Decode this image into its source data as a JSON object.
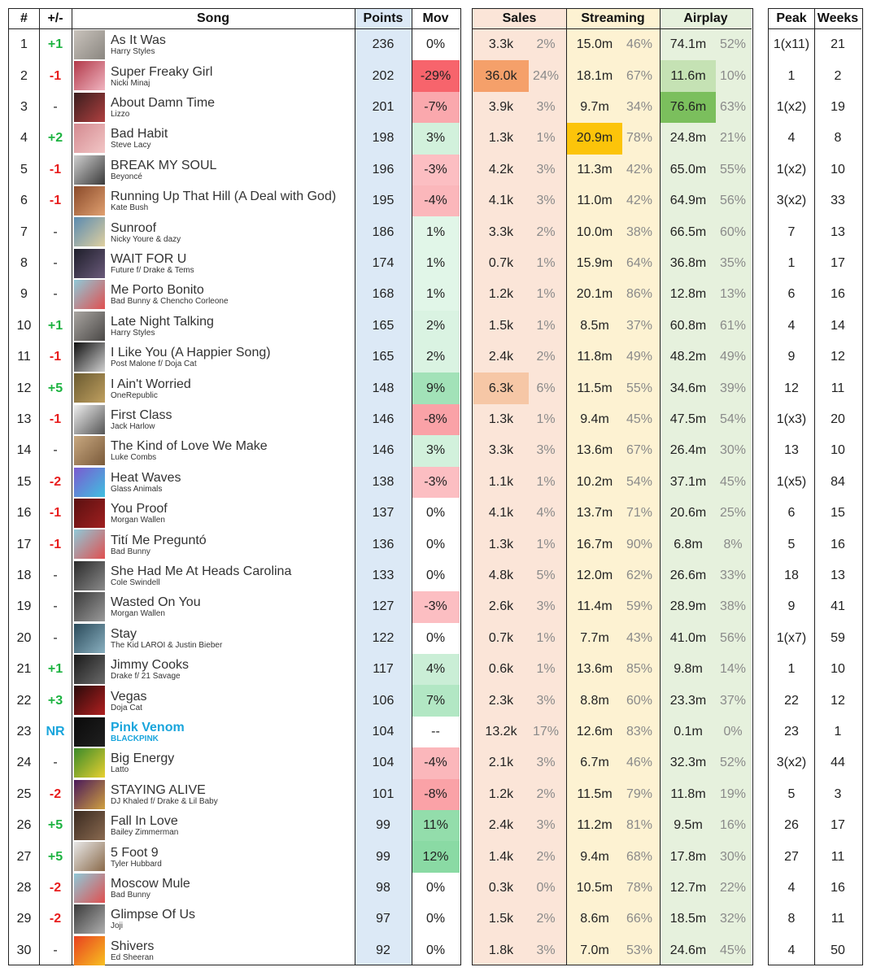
{
  "headers": {
    "rank": "#",
    "change": "+/-",
    "song": "Song",
    "points": "Points",
    "mov": "Mov",
    "sales": "Sales",
    "streaming": "Streaming",
    "airplay": "Airplay",
    "peak": "Peak",
    "weeks": "Weeks"
  },
  "colors": {
    "change_up": "#1db341",
    "change_down": "#e81c1c",
    "new_entry": "#19a5dc",
    "points_col": "#dce9f6",
    "sales_col": "#fbe5d8",
    "streaming_col": "#fdf2d2",
    "airplay_col": "#e6f1dd",
    "sales_highlight": "#f5a06a",
    "streaming_highlight": "#fcc40a",
    "airplay_highlight": "#7bbf5d"
  },
  "rows": [
    {
      "rank": "1",
      "change": "+1",
      "title": "As It Was",
      "artist": "Harry Styles",
      "points": "236",
      "mov": "0%",
      "mov_value": 0,
      "sales": "3.3k",
      "sales_pct": "2%",
      "streaming": "15.0m",
      "streaming_pct": "46%",
      "airplay": "74.1m",
      "airplay_pct": "52%",
      "peak": "1(x11)",
      "weeks": "21",
      "cover_colors": [
        "#c9c3bc",
        "#8a8680"
      ]
    },
    {
      "rank": "2",
      "change": "-1",
      "title": "Super Freaky Girl",
      "artist": "Nicki Minaj",
      "points": "202",
      "mov": "-29%",
      "mov_value": -29,
      "sales": "36.0k",
      "sales_pct": "24%",
      "streaming": "18.1m",
      "streaming_pct": "67%",
      "airplay": "11.6m",
      "airplay_pct": "10%",
      "peak": "1",
      "weeks": "2",
      "cover_colors": [
        "#b23a4a",
        "#f0b4c0"
      ],
      "highlight": {
        "sales": "strong",
        "airplay": "light"
      }
    },
    {
      "rank": "3",
      "change": "-",
      "title": "About Damn Time",
      "artist": "Lizzo",
      "points": "201",
      "mov": "-7%",
      "mov_value": -7,
      "sales": "3.9k",
      "sales_pct": "3%",
      "streaming": "9.7m",
      "streaming_pct": "34%",
      "airplay": "76.6m",
      "airplay_pct": "63%",
      "peak": "1(x2)",
      "weeks": "19",
      "cover_colors": [
        "#3a1e1e",
        "#b04040"
      ],
      "highlight": {
        "airplay": "strong"
      }
    },
    {
      "rank": "4",
      "change": "+2",
      "title": "Bad Habit",
      "artist": "Steve Lacy",
      "points": "198",
      "mov": "3%",
      "mov_value": 3,
      "sales": "1.3k",
      "sales_pct": "1%",
      "streaming": "20.9m",
      "streaming_pct": "78%",
      "airplay": "24.8m",
      "airplay_pct": "21%",
      "peak": "4",
      "weeks": "8",
      "cover_colors": [
        "#d48a90",
        "#f2c6c6"
      ],
      "highlight": {
        "streaming": "strong"
      }
    },
    {
      "rank": "5",
      "change": "-1",
      "title": "BREAK MY SOUL",
      "artist": "Beyoncé",
      "points": "196",
      "mov": "-3%",
      "mov_value": -3,
      "sales": "4.2k",
      "sales_pct": "3%",
      "streaming": "11.3m",
      "streaming_pct": "42%",
      "airplay": "65.0m",
      "airplay_pct": "55%",
      "peak": "1(x2)",
      "weeks": "10",
      "cover_colors": [
        "#cfcfcf",
        "#3a3a3a"
      ]
    },
    {
      "rank": "6",
      "change": "-1",
      "title": "Running Up That Hill (A Deal with God)",
      "artist": "Kate Bush",
      "points": "195",
      "mov": "-4%",
      "mov_value": -4,
      "sales": "4.1k",
      "sales_pct": "3%",
      "streaming": "11.0m",
      "streaming_pct": "42%",
      "airplay": "64.9m",
      "airplay_pct": "56%",
      "peak": "3(x2)",
      "weeks": "33",
      "cover_colors": [
        "#8a4a2a",
        "#e0a070"
      ]
    },
    {
      "rank": "7",
      "change": "-",
      "title": "Sunroof",
      "artist": "Nicky Youre & dazy",
      "points": "186",
      "mov": "1%",
      "mov_value": 1,
      "sales": "3.3k",
      "sales_pct": "2%",
      "streaming": "10.0m",
      "streaming_pct": "38%",
      "airplay": "66.5m",
      "airplay_pct": "60%",
      "peak": "7",
      "weeks": "13",
      "cover_colors": [
        "#5a8ab0",
        "#e0d0a0"
      ]
    },
    {
      "rank": "8",
      "change": "-",
      "title": "WAIT FOR U",
      "artist": "Future f/ Drake & Tems",
      "points": "174",
      "mov": "1%",
      "mov_value": 1,
      "sales": "0.7k",
      "sales_pct": "1%",
      "streaming": "15.9m",
      "streaming_pct": "64%",
      "airplay": "36.8m",
      "airplay_pct": "35%",
      "peak": "1",
      "weeks": "17",
      "cover_colors": [
        "#1e1e2a",
        "#6a5a7a"
      ]
    },
    {
      "rank": "9",
      "change": "-",
      "title": "Me Porto Bonito",
      "artist": "Bad Bunny & Chencho Corleone",
      "points": "168",
      "mov": "1%",
      "mov_value": 1,
      "sales": "1.2k",
      "sales_pct": "1%",
      "streaming": "20.1m",
      "streaming_pct": "86%",
      "airplay": "12.8m",
      "airplay_pct": "13%",
      "peak": "6",
      "weeks": "16",
      "cover_colors": [
        "#8fc9d8",
        "#e05050"
      ]
    },
    {
      "rank": "10",
      "change": "+1",
      "title": "Late Night Talking",
      "artist": "Harry Styles",
      "points": "165",
      "mov": "2%",
      "mov_value": 2,
      "sales": "1.5k",
      "sales_pct": "1%",
      "streaming": "8.5m",
      "streaming_pct": "37%",
      "airplay": "60.8m",
      "airplay_pct": "61%",
      "peak": "4",
      "weeks": "14",
      "cover_colors": [
        "#a8a4a0",
        "#4a4846"
      ]
    },
    {
      "rank": "11",
      "change": "-1",
      "title": "I Like You (A Happier Song)",
      "artist": "Post Malone f/ Doja Cat",
      "points": "165",
      "mov": "2%",
      "mov_value": 2,
      "sales": "2.4k",
      "sales_pct": "2%",
      "streaming": "11.8m",
      "streaming_pct": "49%",
      "airplay": "48.2m",
      "airplay_pct": "49%",
      "peak": "9",
      "weeks": "12",
      "cover_colors": [
        "#101010",
        "#d0d0d0"
      ]
    },
    {
      "rank": "12",
      "change": "+5",
      "title": "I Ain't Worried",
      "artist": "OneRepublic",
      "points": "148",
      "mov": "9%",
      "mov_value": 9,
      "sales": "6.3k",
      "sales_pct": "6%",
      "streaming": "11.5m",
      "streaming_pct": "55%",
      "airplay": "34.6m",
      "airplay_pct": "39%",
      "peak": "12",
      "weeks": "11",
      "cover_colors": [
        "#6a5a30",
        "#c0a060"
      ],
      "highlight": {
        "sales": "light"
      }
    },
    {
      "rank": "13",
      "change": "-1",
      "title": "First Class",
      "artist": "Jack Harlow",
      "points": "146",
      "mov": "-8%",
      "mov_value": -8,
      "sales": "1.3k",
      "sales_pct": "1%",
      "streaming": "9.4m",
      "streaming_pct": "45%",
      "airplay": "47.5m",
      "airplay_pct": "54%",
      "peak": "1(x3)",
      "weeks": "20",
      "cover_colors": [
        "#eeeeee",
        "#555555"
      ]
    },
    {
      "rank": "14",
      "change": "-",
      "title": "The Kind of Love We Make",
      "artist": "Luke Combs",
      "points": "146",
      "mov": "3%",
      "mov_value": 3,
      "sales": "3.3k",
      "sales_pct": "3%",
      "streaming": "13.6m",
      "streaming_pct": "67%",
      "airplay": "26.4m",
      "airplay_pct": "30%",
      "peak": "13",
      "weeks": "10",
      "cover_colors": [
        "#c8a880",
        "#7a5a3a"
      ]
    },
    {
      "rank": "15",
      "change": "-2",
      "title": "Heat Waves",
      "artist": "Glass Animals",
      "points": "138",
      "mov": "-3%",
      "mov_value": -3,
      "sales": "1.1k",
      "sales_pct": "1%",
      "streaming": "10.2m",
      "streaming_pct": "54%",
      "airplay": "37.1m",
      "airplay_pct": "45%",
      "peak": "1(x5)",
      "weeks": "84",
      "cover_colors": [
        "#7a5ad0",
        "#40c0e0"
      ]
    },
    {
      "rank": "16",
      "change": "-1",
      "title": "You Proof",
      "artist": "Morgan Wallen",
      "points": "137",
      "mov": "0%",
      "mov_value": 0,
      "sales": "4.1k",
      "sales_pct": "4%",
      "streaming": "13.7m",
      "streaming_pct": "71%",
      "airplay": "20.6m",
      "airplay_pct": "25%",
      "peak": "6",
      "weeks": "15",
      "cover_colors": [
        "#5a1010",
        "#a02020"
      ]
    },
    {
      "rank": "17",
      "change": "-1",
      "title": "Tití Me Preguntó",
      "artist": "Bad Bunny",
      "points": "136",
      "mov": "0%",
      "mov_value": 0,
      "sales": "1.3k",
      "sales_pct": "1%",
      "streaming": "16.7m",
      "streaming_pct": "90%",
      "airplay": "6.8m",
      "airplay_pct": "8%",
      "peak": "5",
      "weeks": "16",
      "cover_colors": [
        "#8fc9d8",
        "#e05050"
      ]
    },
    {
      "rank": "18",
      "change": "-",
      "title": "She Had Me At Heads Carolina",
      "artist": "Cole Swindell",
      "points": "133",
      "mov": "0%",
      "mov_value": 0,
      "sales": "4.8k",
      "sales_pct": "5%",
      "streaming": "12.0m",
      "streaming_pct": "62%",
      "airplay": "26.6m",
      "airplay_pct": "33%",
      "peak": "18",
      "weeks": "13",
      "cover_colors": [
        "#2a2a2a",
        "#8a8a8a"
      ]
    },
    {
      "rank": "19",
      "change": "-",
      "title": "Wasted On You",
      "artist": "Morgan Wallen",
      "points": "127",
      "mov": "-3%",
      "mov_value": -3,
      "sales": "2.6k",
      "sales_pct": "3%",
      "streaming": "11.4m",
      "streaming_pct": "59%",
      "airplay": "28.9m",
      "airplay_pct": "38%",
      "peak": "9",
      "weeks": "41",
      "cover_colors": [
        "#3a3a3a",
        "#9a9a9a"
      ]
    },
    {
      "rank": "20",
      "change": "-",
      "title": "Stay",
      "artist": "The Kid LAROI & Justin Bieber",
      "points": "122",
      "mov": "0%",
      "mov_value": 0,
      "sales": "0.7k",
      "sales_pct": "1%",
      "streaming": "7.7m",
      "streaming_pct": "43%",
      "airplay": "41.0m",
      "airplay_pct": "56%",
      "peak": "1(x7)",
      "weeks": "59",
      "cover_colors": [
        "#2a4a5a",
        "#8ab0c0"
      ]
    },
    {
      "rank": "21",
      "change": "+1",
      "title": "Jimmy Cooks",
      "artist": "Drake f/ 21 Savage",
      "points": "117",
      "mov": "4%",
      "mov_value": 4,
      "sales": "0.6k",
      "sales_pct": "1%",
      "streaming": "13.6m",
      "streaming_pct": "85%",
      "airplay": "9.8m",
      "airplay_pct": "14%",
      "peak": "1",
      "weeks": "10",
      "cover_colors": [
        "#1a1a1a",
        "#6a6a6a"
      ]
    },
    {
      "rank": "22",
      "change": "+3",
      "title": "Vegas",
      "artist": "Doja Cat",
      "points": "106",
      "mov": "7%",
      "mov_value": 7,
      "sales": "2.3k",
      "sales_pct": "3%",
      "streaming": "8.8m",
      "streaming_pct": "60%",
      "airplay": "23.3m",
      "airplay_pct": "37%",
      "peak": "22",
      "weeks": "12",
      "cover_colors": [
        "#2a0a0a",
        "#b02020"
      ]
    },
    {
      "rank": "23",
      "change": "NR",
      "title": "Pink Venom",
      "artist": "BLACKPINK",
      "points": "104",
      "mov": "--",
      "mov_value": null,
      "sales": "13.2k",
      "sales_pct": "17%",
      "streaming": "12.6m",
      "streaming_pct": "83%",
      "airplay": "0.1m",
      "airplay_pct": "0%",
      "peak": "23",
      "weeks": "1",
      "cover_colors": [
        "#0a0a0a",
        "#202020"
      ],
      "new_entry": true
    },
    {
      "rank": "24",
      "change": "-",
      "title": "Big Energy",
      "artist": "Latto",
      "points": "104",
      "mov": "-4%",
      "mov_value": -4,
      "sales": "2.1k",
      "sales_pct": "3%",
      "streaming": "6.7m",
      "streaming_pct": "46%",
      "airplay": "32.3m",
      "airplay_pct": "52%",
      "peak": "3(x2)",
      "weeks": "44",
      "cover_colors": [
        "#3a8a2a",
        "#e8d030"
      ]
    },
    {
      "rank": "25",
      "change": "-2",
      "title": "STAYING ALIVE",
      "artist": "DJ Khaled f/ Drake & Lil Baby",
      "points": "101",
      "mov": "-8%",
      "mov_value": -8,
      "sales": "1.2k",
      "sales_pct": "2%",
      "streaming": "11.5m",
      "streaming_pct": "79%",
      "airplay": "11.8m",
      "airplay_pct": "19%",
      "peak": "5",
      "weeks": "3",
      "cover_colors": [
        "#4a1a5a",
        "#d0a040"
      ]
    },
    {
      "rank": "26",
      "change": "+5",
      "title": "Fall In Love",
      "artist": "Bailey Zimmerman",
      "points": "99",
      "mov": "11%",
      "mov_value": 11,
      "sales": "2.4k",
      "sales_pct": "3%",
      "streaming": "11.2m",
      "streaming_pct": "81%",
      "airplay": "9.5m",
      "airplay_pct": "16%",
      "peak": "26",
      "weeks": "17",
      "cover_colors": [
        "#3a2a20",
        "#8a6a50"
      ]
    },
    {
      "rank": "27",
      "change": "+5",
      "title": "5 Foot 9",
      "artist": "Tyler Hubbard",
      "points": "99",
      "mov": "12%",
      "mov_value": 12,
      "sales": "1.4k",
      "sales_pct": "2%",
      "streaming": "9.4m",
      "streaming_pct": "68%",
      "airplay": "17.8m",
      "airplay_pct": "30%",
      "peak": "27",
      "weeks": "11",
      "cover_colors": [
        "#e8e8e8",
        "#8a6a4a"
      ]
    },
    {
      "rank": "28",
      "change": "-2",
      "title": "Moscow Mule",
      "artist": "Bad Bunny",
      "points": "98",
      "mov": "0%",
      "mov_value": 0,
      "sales": "0.3k",
      "sales_pct": "0%",
      "streaming": "10.5m",
      "streaming_pct": "78%",
      "airplay": "12.7m",
      "airplay_pct": "22%",
      "peak": "4",
      "weeks": "16",
      "cover_colors": [
        "#8fc9d8",
        "#e05050"
      ]
    },
    {
      "rank": "29",
      "change": "-2",
      "title": "Glimpse Of Us",
      "artist": "Joji",
      "points": "97",
      "mov": "0%",
      "mov_value": 0,
      "sales": "1.5k",
      "sales_pct": "2%",
      "streaming": "8.6m",
      "streaming_pct": "66%",
      "airplay": "18.5m",
      "airplay_pct": "32%",
      "peak": "8",
      "weeks": "11",
      "cover_colors": [
        "#3a3a3a",
        "#b0b0b0"
      ]
    },
    {
      "rank": "30",
      "change": "-",
      "title": "Shivers",
      "artist": "Ed Sheeran",
      "points": "92",
      "mov": "0%",
      "mov_value": 0,
      "sales": "1.8k",
      "sales_pct": "3%",
      "streaming": "7.0m",
      "streaming_pct": "53%",
      "airplay": "24.6m",
      "airplay_pct": "45%",
      "peak": "4",
      "weeks": "50",
      "cover_colors": [
        "#e84020",
        "#f8c020"
      ]
    }
  ]
}
